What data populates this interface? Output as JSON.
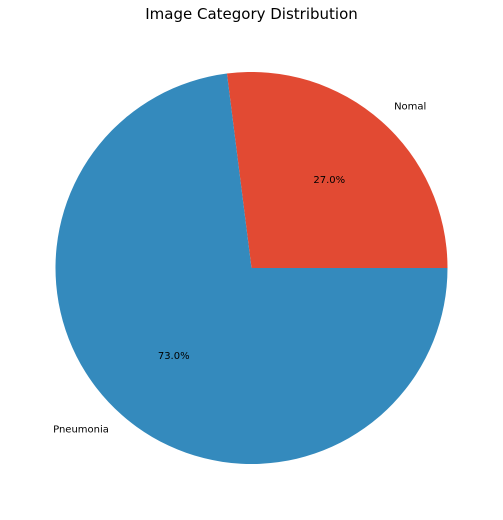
{
  "chart_data": {
    "type": "pie",
    "title": "Image Category Distribution",
    "slices": [
      {
        "label": "Nomal",
        "value": 27.0,
        "display": "27.0%",
        "color": "#e24a33"
      },
      {
        "label": "Pneumonia",
        "value": 73.0,
        "display": "73.0%",
        "color": "#348abd"
      }
    ],
    "start_angle_deg": 0,
    "direction": "counterclockwise",
    "legend": "none"
  }
}
